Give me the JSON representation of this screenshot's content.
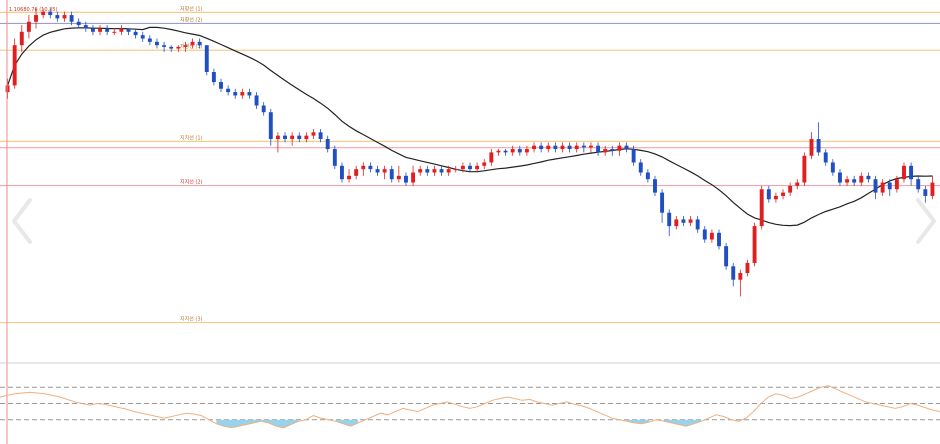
{
  "chart_data": {
    "type": "candlestick",
    "top_label": "1.10680.76 (10.35)",
    "price_ylim": [
      0,
      1
    ],
    "levels": [
      {
        "label": "저항선 (1)",
        "value": 0.978,
        "color": "#f5cc8e"
      },
      {
        "label": "저항선 (2)",
        "value": 0.945,
        "color": "#9aa0c8"
      },
      {
        "label": "저항선 (3)",
        "value": 0.865,
        "color": "#f5cc8e"
      },
      {
        "label": "지지선 (1)",
        "value": 0.593,
        "color": "#f5cc8e"
      },
      {
        "label": "",
        "value": 0.574,
        "color": "#f2a6ae"
      },
      {
        "label": "지지선 (2)",
        "value": 0.461,
        "color": "#f2a6ae"
      },
      {
        "label": "지지선 (3)",
        "value": 0.052,
        "color": "#f5cc8e"
      }
    ],
    "candles": [
      [
        0.74,
        0.76,
        0.72,
        0.78
      ],
      [
        0.76,
        0.88,
        0.75,
        0.9
      ],
      [
        0.88,
        0.92,
        0.86,
        0.94
      ],
      [
        0.92,
        0.95,
        0.9,
        0.97
      ],
      [
        0.95,
        0.97,
        0.93,
        0.99
      ],
      [
        0.97,
        0.98,
        0.96,
        0.99
      ],
      [
        0.98,
        0.97,
        0.96,
        0.99
      ],
      [
        0.97,
        0.96,
        0.95,
        0.98
      ],
      [
        0.96,
        0.97,
        0.95,
        0.98
      ],
      [
        0.97,
        0.95,
        0.94,
        0.98
      ],
      [
        0.95,
        0.94,
        0.93,
        0.96
      ],
      [
        0.94,
        0.93,
        0.92,
        0.95
      ],
      [
        0.93,
        0.92,
        0.91,
        0.94
      ],
      [
        0.92,
        0.93,
        0.91,
        0.94
      ],
      [
        0.93,
        0.92,
        0.91,
        0.94
      ],
      [
        0.92,
        0.92,
        0.91,
        0.93
      ],
      [
        0.92,
        0.93,
        0.91,
        0.94
      ],
      [
        0.93,
        0.92,
        0.91,
        0.93
      ],
      [
        0.92,
        0.91,
        0.9,
        0.93
      ],
      [
        0.91,
        0.9,
        0.89,
        0.92
      ],
      [
        0.9,
        0.89,
        0.88,
        0.91
      ],
      [
        0.89,
        0.88,
        0.87,
        0.9
      ],
      [
        0.88,
        0.875,
        0.86,
        0.89
      ],
      [
        0.875,
        0.87,
        0.86,
        0.88
      ],
      [
        0.87,
        0.875,
        0.86,
        0.88
      ],
      [
        0.875,
        0.88,
        0.86,
        0.89
      ],
      [
        0.88,
        0.89,
        0.87,
        0.9
      ],
      [
        0.89,
        0.88,
        0.87,
        0.9
      ],
      [
        0.88,
        0.8,
        0.79,
        0.88
      ],
      [
        0.8,
        0.77,
        0.76,
        0.81
      ],
      [
        0.77,
        0.75,
        0.74,
        0.78
      ],
      [
        0.75,
        0.74,
        0.73,
        0.76
      ],
      [
        0.74,
        0.73,
        0.72,
        0.75
      ],
      [
        0.73,
        0.74,
        0.72,
        0.75
      ],
      [
        0.74,
        0.73,
        0.72,
        0.75
      ],
      [
        0.73,
        0.7,
        0.69,
        0.74
      ],
      [
        0.7,
        0.68,
        0.67,
        0.71
      ],
      [
        0.68,
        0.6,
        0.58,
        0.69
      ],
      [
        0.6,
        0.61,
        0.56,
        0.62
      ],
      [
        0.61,
        0.6,
        0.59,
        0.62
      ],
      [
        0.6,
        0.61,
        0.58,
        0.62
      ],
      [
        0.61,
        0.6,
        0.59,
        0.62
      ],
      [
        0.6,
        0.61,
        0.59,
        0.62
      ],
      [
        0.61,
        0.62,
        0.6,
        0.63
      ],
      [
        0.62,
        0.6,
        0.59,
        0.63
      ],
      [
        0.6,
        0.57,
        0.56,
        0.61
      ],
      [
        0.57,
        0.52,
        0.51,
        0.58
      ],
      [
        0.52,
        0.48,
        0.47,
        0.53
      ],
      [
        0.48,
        0.49,
        0.47,
        0.51
      ],
      [
        0.49,
        0.51,
        0.48,
        0.52
      ],
      [
        0.51,
        0.52,
        0.49,
        0.53
      ],
      [
        0.52,
        0.51,
        0.5,
        0.53
      ],
      [
        0.51,
        0.5,
        0.49,
        0.52
      ],
      [
        0.5,
        0.51,
        0.48,
        0.52
      ],
      [
        0.51,
        0.48,
        0.47,
        0.52
      ],
      [
        0.48,
        0.49,
        0.47,
        0.52
      ],
      [
        0.49,
        0.47,
        0.46,
        0.5
      ],
      [
        0.47,
        0.5,
        0.46,
        0.52
      ],
      [
        0.5,
        0.51,
        0.49,
        0.52
      ],
      [
        0.51,
        0.5,
        0.49,
        0.52
      ],
      [
        0.5,
        0.51,
        0.49,
        0.52
      ],
      [
        0.51,
        0.5,
        0.49,
        0.52
      ],
      [
        0.5,
        0.51,
        0.49,
        0.52
      ],
      [
        0.51,
        0.51,
        0.5,
        0.52
      ],
      [
        0.51,
        0.52,
        0.5,
        0.53
      ],
      [
        0.52,
        0.51,
        0.5,
        0.53
      ],
      [
        0.51,
        0.52,
        0.5,
        0.53
      ],
      [
        0.52,
        0.53,
        0.51,
        0.54
      ],
      [
        0.53,
        0.56,
        0.52,
        0.57
      ],
      [
        0.56,
        0.565,
        0.55,
        0.57
      ],
      [
        0.565,
        0.56,
        0.55,
        0.57
      ],
      [
        0.56,
        0.57,
        0.55,
        0.58
      ],
      [
        0.57,
        0.56,
        0.55,
        0.58
      ],
      [
        0.56,
        0.57,
        0.55,
        0.58
      ],
      [
        0.57,
        0.58,
        0.56,
        0.59
      ],
      [
        0.58,
        0.57,
        0.56,
        0.59
      ],
      [
        0.57,
        0.58,
        0.56,
        0.59
      ],
      [
        0.58,
        0.57,
        0.56,
        0.59
      ],
      [
        0.57,
        0.58,
        0.56,
        0.59
      ],
      [
        0.58,
        0.57,
        0.56,
        0.59
      ],
      [
        0.57,
        0.58,
        0.56,
        0.59
      ],
      [
        0.58,
        0.575,
        0.56,
        0.59
      ],
      [
        0.575,
        0.58,
        0.56,
        0.59
      ],
      [
        0.58,
        0.56,
        0.55,
        0.59
      ],
      [
        0.56,
        0.57,
        0.55,
        0.58
      ],
      [
        0.57,
        0.565,
        0.55,
        0.58
      ],
      [
        0.565,
        0.58,
        0.55,
        0.59
      ],
      [
        0.58,
        0.57,
        0.56,
        0.59
      ],
      [
        0.57,
        0.53,
        0.52,
        0.58
      ],
      [
        0.53,
        0.5,
        0.49,
        0.54
      ],
      [
        0.5,
        0.48,
        0.47,
        0.51
      ],
      [
        0.48,
        0.44,
        0.43,
        0.49
      ],
      [
        0.44,
        0.38,
        0.35,
        0.45
      ],
      [
        0.38,
        0.34,
        0.31,
        0.39
      ],
      [
        0.34,
        0.36,
        0.33,
        0.37
      ],
      [
        0.36,
        0.35,
        0.34,
        0.37
      ],
      [
        0.35,
        0.36,
        0.34,
        0.37
      ],
      [
        0.36,
        0.33,
        0.32,
        0.37
      ],
      [
        0.33,
        0.3,
        0.29,
        0.34
      ],
      [
        0.3,
        0.32,
        0.29,
        0.33
      ],
      [
        0.32,
        0.28,
        0.27,
        0.33
      ],
      [
        0.28,
        0.22,
        0.21,
        0.29
      ],
      [
        0.22,
        0.18,
        0.16,
        0.23
      ],
      [
        0.18,
        0.2,
        0.13,
        0.21
      ],
      [
        0.2,
        0.23,
        0.19,
        0.24
      ],
      [
        0.23,
        0.34,
        0.22,
        0.35
      ],
      [
        0.34,
        0.45,
        0.33,
        0.46
      ],
      [
        0.45,
        0.42,
        0.41,
        0.46
      ],
      [
        0.42,
        0.43,
        0.41,
        0.44
      ],
      [
        0.43,
        0.44,
        0.42,
        0.45
      ],
      [
        0.44,
        0.46,
        0.43,
        0.47
      ],
      [
        0.46,
        0.47,
        0.45,
        0.48
      ],
      [
        0.47,
        0.55,
        0.46,
        0.56
      ],
      [
        0.55,
        0.6,
        0.54,
        0.62
      ],
      [
        0.6,
        0.56,
        0.55,
        0.65
      ],
      [
        0.56,
        0.53,
        0.52,
        0.57
      ],
      [
        0.53,
        0.5,
        0.49,
        0.54
      ],
      [
        0.5,
        0.47,
        0.46,
        0.51
      ],
      [
        0.47,
        0.48,
        0.46,
        0.49
      ],
      [
        0.48,
        0.47,
        0.46,
        0.49
      ],
      [
        0.47,
        0.49,
        0.46,
        0.5
      ],
      [
        0.49,
        0.48,
        0.47,
        0.5
      ],
      [
        0.48,
        0.44,
        0.42,
        0.49
      ],
      [
        0.44,
        0.47,
        0.43,
        0.48
      ],
      [
        0.47,
        0.45,
        0.43,
        0.48
      ],
      [
        0.45,
        0.48,
        0.44,
        0.49
      ],
      [
        0.48,
        0.52,
        0.47,
        0.53
      ],
      [
        0.52,
        0.48,
        0.46,
        0.53
      ],
      [
        0.48,
        0.45,
        0.44,
        0.49
      ],
      [
        0.45,
        0.43,
        0.41,
        0.46
      ],
      [
        0.43,
        0.47,
        0.42,
        0.49
      ]
    ],
    "rsi": [
      0.58,
      0.6,
      0.62,
      0.63,
      0.64,
      0.63,
      0.62,
      0.6,
      0.58,
      0.55,
      0.52,
      0.5,
      0.48,
      0.5,
      0.49,
      0.47,
      0.45,
      0.43,
      0.4,
      0.38,
      0.36,
      0.34,
      0.32,
      0.34,
      0.36,
      0.38,
      0.37,
      0.35,
      0.3,
      0.25,
      0.22,
      0.2,
      0.22,
      0.24,
      0.26,
      0.28,
      0.26,
      0.22,
      0.2,
      0.24,
      0.28,
      0.3,
      0.35,
      0.32,
      0.3,
      0.28,
      0.25,
      0.22,
      0.26,
      0.3,
      0.34,
      0.38,
      0.36,
      0.4,
      0.44,
      0.42,
      0.4,
      0.44,
      0.48,
      0.5,
      0.52,
      0.49,
      0.46,
      0.44,
      0.46,
      0.5,
      0.54,
      0.56,
      0.58,
      0.56,
      0.54,
      0.55,
      0.52,
      0.5,
      0.48,
      0.5,
      0.52,
      0.49,
      0.47,
      0.44,
      0.4,
      0.36,
      0.32,
      0.3,
      0.28,
      0.26,
      0.25,
      0.27,
      0.3,
      0.28,
      0.26,
      0.24,
      0.22,
      0.25,
      0.28,
      0.32,
      0.36,
      0.34,
      0.3,
      0.28,
      0.32,
      0.4,
      0.5,
      0.58,
      0.62,
      0.6,
      0.56,
      0.58,
      0.62,
      0.66,
      0.7,
      0.72,
      0.68,
      0.64,
      0.6,
      0.56,
      0.52,
      0.5,
      0.48,
      0.46,
      0.44,
      0.46,
      0.5,
      0.48,
      0.45,
      0.42,
      0.4
    ],
    "rsi_ylim": [
      0,
      1
    ],
    "rsi_levels": [
      0.7,
      0.5,
      0.3
    ],
    "grid": false,
    "legend": "none",
    "colors": {
      "up": "#e02020",
      "down": "#1f4fc1",
      "ma": "#222222",
      "rsi": "#f0b080",
      "rsi_fill_low": "#86cbe8",
      "rsi_fill_high": "#f0a070",
      "cursor": "#f28b8b",
      "ref_line": "#999999"
    }
  },
  "nav": {
    "prev_icon": "chevron-left-icon",
    "next_icon": "chevron-right-icon"
  }
}
